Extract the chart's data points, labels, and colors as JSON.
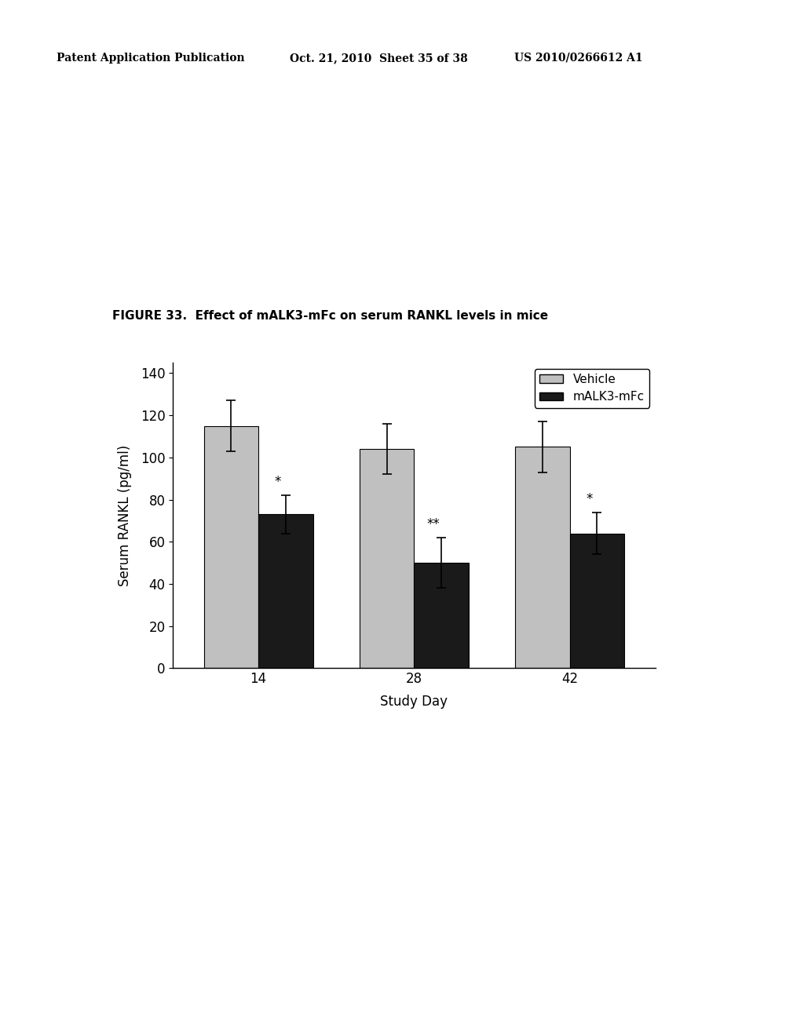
{
  "title": "FIGURE 33.  Effect of mALK3-mFc on serum RANKL levels in mice",
  "xlabel": "Study Day",
  "ylabel": "Serum RANKL (pg/ml)",
  "study_days": [
    14,
    28,
    42
  ],
  "vehicle_means": [
    115,
    104,
    105
  ],
  "vehicle_errors": [
    12,
    12,
    12
  ],
  "malk3_means": [
    73,
    50,
    64
  ],
  "malk3_errors": [
    9,
    12,
    10
  ],
  "vehicle_color": "#c0c0c0",
  "malk3_color": "#1a1a1a",
  "ylim": [
    0,
    145
  ],
  "yticks": [
    0,
    20,
    40,
    60,
    80,
    100,
    120,
    140
  ],
  "bar_width": 0.35,
  "significance_day14": "*",
  "significance_day28": "**",
  "significance_day42": "*",
  "legend_vehicle": "Vehicle",
  "legend_malk3": "mALK3-mFc",
  "header_left": "Patent Application Publication",
  "header_mid": "Oct. 21, 2010  Sheet 35 of 38",
  "header_right": "US 2010/0266612 A1",
  "background_color": "#ffffff"
}
